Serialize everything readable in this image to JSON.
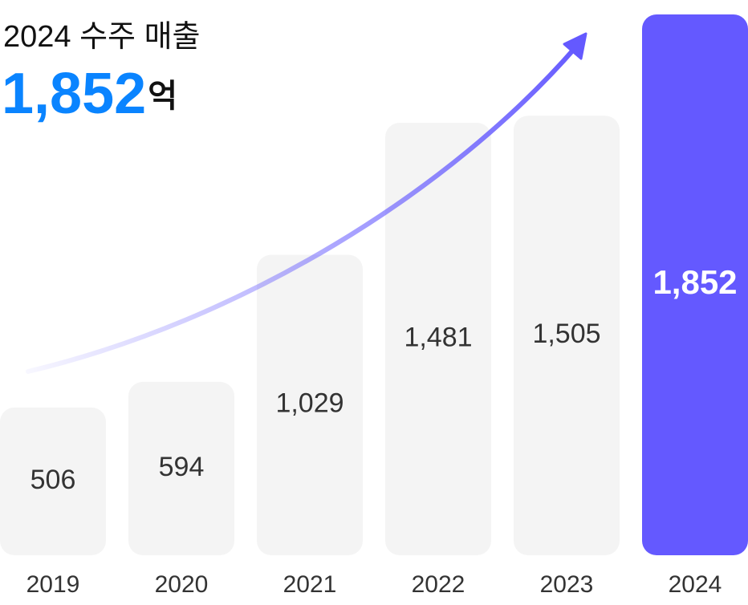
{
  "chart_data": {
    "type": "bar",
    "title": "2024 수주 매출",
    "headline": "1,852",
    "headline_unit": "억",
    "categories": [
      "2019",
      "2020",
      "2021",
      "2022",
      "2023",
      "2024"
    ],
    "values": [
      506,
      594,
      1029,
      1481,
      1505,
      1852
    ],
    "value_labels": [
      "506",
      "594",
      "1,029",
      "1,481",
      "1,505",
      "1,852"
    ],
    "colors": [
      "#f4f4f4",
      "#f4f4f4",
      "#f4f4f4",
      "#f4f4f4",
      "#f4f4f4",
      "#6459ff"
    ]
  }
}
